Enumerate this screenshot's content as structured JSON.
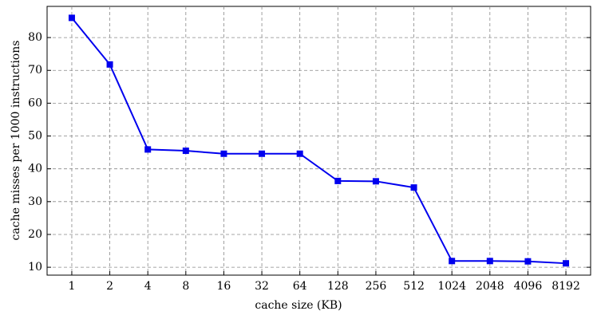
{
  "chart_data": {
    "type": "line",
    "x_label": "cache size (KB)",
    "y_label": "cache misses per 1000 instructions",
    "categories": [
      "1",
      "2",
      "4",
      "8",
      "16",
      "32",
      "64",
      "128",
      "256",
      "512",
      "1024",
      "2048",
      "4096",
      "8192"
    ],
    "values": [
      86,
      71.8,
      45.9,
      45.5,
      44.6,
      44.6,
      44.6,
      36.3,
      36.2,
      34.3,
      11.9,
      11.9,
      11.8,
      11.2
    ],
    "color": "#0000ee",
    "marker": "square",
    "ylim": [
      7.6,
      89.5
    ],
    "yticks": [
      10,
      20,
      30,
      40,
      50,
      60,
      70,
      80
    ],
    "grid": true
  }
}
